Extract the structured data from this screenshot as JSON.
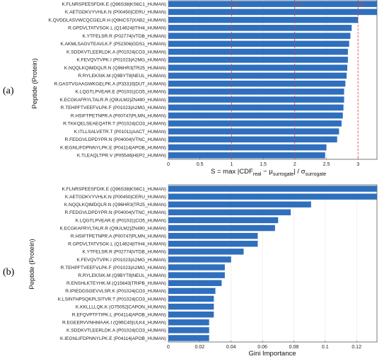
{
  "panels": {
    "a": {
      "label": "(a)"
    },
    "b": {
      "label": "(b)"
    }
  },
  "colors": {
    "bar": "#2f6fbd",
    "threshold": "#e53935",
    "grid": "#e6e6e6",
    "axis": "#444444"
  },
  "chart_data": [
    {
      "type": "bar",
      "orientation": "horizontal",
      "panel": "(a)",
      "categories": [
        "K.FLNRSPEESFDIK.E (Q96S38|KS6C1_HUMAN)",
        "K.AETGDKVYVHLK.N (P00450|CERU_HUMAN)",
        "K.QVDDLASVWCQCGELR.H (Q9HCS7|XAB2_HUMAN)",
        "R.GPDVLTATVSGK.L (Q14624|ITIH4_HUMAN)",
        "K.YTFELSR.R (P02774|VTDB_HUMAN)",
        "K.AKMLSAGVTEAVLK.F (P52306|GDS1_HUMAN)",
        "K.SDDKVTLEERLDK.A (P01024|CO3_HUMAN)",
        "K.FEVQVTVPK.I (P01023|A2MG_HUMAN)",
        "K.NQQLKQIMDQLR.N (Q96HR3|TR25_HUMAN)",
        "R.RYLEKSIK.M (Q9BYT8|NEUL_HUMAN)",
        "R.GASTVGAAGWKGELPK.A (P33316|DUT_HUMAN)",
        "K.LQGTLPVEAR.E (P01031|CO5_HUMAN)",
        "K.ECGKAFRYLTALR.R (Q9ULM2|ZN490_HUMAN)",
        "R.TEHPFTVEEFVLPK.F (P01023|A2MG_HUMAN)",
        "R.HSIFTPETNPR.A (P00747|PLMN_HUMAN)",
        "R.TKKQELSEAEQATR.T (P01024|CO3_HUMAN)",
        "K.ITLLSALVETR.T (P01011|AACT_HUMAN)",
        "R.FEDGVLDPDYPR.N (P04004|VTNC_HUMAN)",
        "K.IEGNLIFDPNNYLPK.E (P04114|APOB_HUMAN)",
        "K.TLEAQLTPR.V (P05546|HEP2_HUMAN)"
      ],
      "values": [
        3.3,
        3.3,
        3.0,
        2.9,
        2.88,
        2.86,
        2.84,
        2.84,
        2.83,
        2.82,
        2.8,
        2.78,
        2.78,
        2.77,
        2.76,
        2.74,
        2.7,
        2.67,
        2.5,
        2.48
      ],
      "xlim": [
        0,
        3.3
      ],
      "xticks": [
        "0",
        "0.5",
        "1",
        "1.5",
        "2",
        "2.5",
        "3"
      ],
      "ylabel": "Peptide (Protein)",
      "xlabel": {
        "main": "S = max |CDF",
        "sub1": "real",
        "mid": " − μ",
        "sub2": "surrogate",
        "tail": "| / σ",
        "sub3": "surrogate"
      },
      "thresholds": [
        {
          "x": 1.0,
          "label": "1σ"
        },
        {
          "x": 2.0,
          "label": "2σ"
        },
        {
          "x": 3.0,
          "label": "3σ"
        }
      ],
      "grid": true
    },
    {
      "type": "bar",
      "orientation": "horizontal",
      "panel": "(b)",
      "categories": [
        "K.FLNRSPEESFDIK.E (Q96S38|KS6C1_HUMAN)",
        "K.AETGDKVYVHLK.N (P00450|CERU_HUMAN)",
        "K.NQQLKQIMDQLR.N (Q96HR3|TR25_HUMAN)",
        "R.FEDGVLDPDYPR.N (P04004|VTNC_HUMAN)",
        "K.LQGTLPVEAR.E (P01031|CO5_HUMAN)",
        "K.ECGKAFRYLTALR.R (Q9ULM2|ZN490_HUMAN)",
        "R.HSIFTPETNPR.A (P00747|PLMN_HUMAN)",
        "R.GPDVLTATVSGK.L (Q14624|ITIH4_HUMAN)",
        "K.YTFELSR.R (P02774|VTDB_HUMAN)",
        "K.FEVQVTVPK.I (P01023|A2MG_HUMAN)",
        "R.TEHPFTVEEFVLPK.F (P01023|A2MG_HUMAN)",
        "R.RYLEKSIK.M (Q9BYT8|NEUL_HUMAN)",
        "R.ENSHLKTEYHK.M (Q15643|TRIPB_HUMAN)",
        "R.IPIEDGSGEVVLSR.K (P01024|CO3_HUMAN)",
        "K.LSINTHPSQKPLSITVR.T (P01024|CO3_HUMAN)",
        "K.KKLLLLQK.K (O75052|CAPON_HUMAN)",
        "R.EFQVPTFTIPK.L (P04114|APOB_HUMAN)",
        "R.EGEERVVNHMAAK.I (Q96C45|ULK4_HUMAN)",
        "K.SDDKVTLEERLDK.A (P01024|CO3_HUMAN)",
        "K.IEGNLIFDPNNYLPK.E (P04114|APOB_HUMAN)"
      ],
      "values": [
        0.133,
        0.133,
        0.091,
        0.078,
        0.07,
        0.068,
        0.057,
        0.057,
        0.048,
        0.04,
        0.036,
        0.036,
        0.034,
        0.03,
        0.029,
        0.029,
        0.029,
        0.026,
        0.026,
        0.026
      ],
      "xlim": [
        0,
        0.133
      ],
      "xticks": [
        "0",
        "0.02",
        "0.04",
        "0.06",
        "0.08",
        "0.1",
        "0.12"
      ],
      "ylabel": "Peptide (Protein)",
      "xlabel": "Gini Importance",
      "grid": true
    }
  ]
}
